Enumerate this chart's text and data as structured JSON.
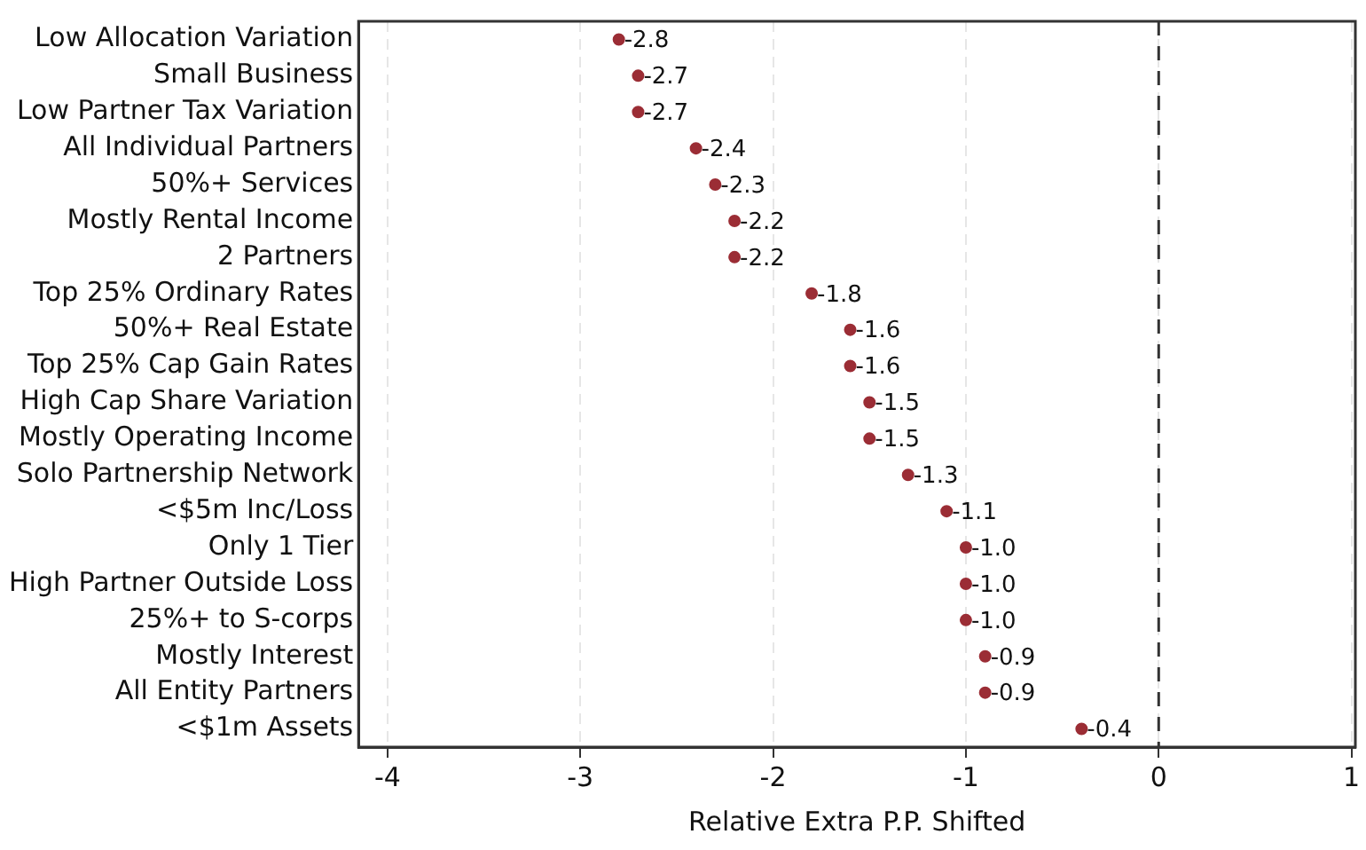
{
  "chart_data": {
    "type": "scatter",
    "orientation": "horizontal",
    "xlabel": "Relative Extra P.P. Shifted",
    "categories": [
      "Low Allocation Variation",
      "Small Business",
      "Low Partner Tax Variation",
      "All Individual Partners",
      "50%+ Services",
      "Mostly Rental Income",
      "2 Partners",
      "Top 25% Ordinary Rates",
      "50%+ Real Estate",
      "Top 25% Cap Gain Rates",
      "High Cap Share Variation",
      "Mostly Operating Income",
      "Solo Partnership Network",
      "<$5m Inc/Loss",
      "Only 1 Tier",
      "High Partner Outside Loss",
      "25%+ to S-corps",
      "Mostly Interest",
      "All Entity Partners",
      "<$1m Assets"
    ],
    "values": [
      -2.8,
      -2.7,
      -2.7,
      -2.4,
      -2.3,
      -2.2,
      -2.2,
      -1.8,
      -1.6,
      -1.6,
      -1.5,
      -1.5,
      -1.3,
      -1.1,
      -1.0,
      -1.0,
      -1.0,
      -0.9,
      -0.9,
      -0.4
    ],
    "value_labels": [
      "-2.8",
      "-2.7",
      "-2.7",
      "-2.4",
      "-2.3",
      "-2.2",
      "-2.2",
      "-1.8",
      "-1.6",
      "-1.6",
      "-1.5",
      "-1.5",
      "-1.3",
      "-1.1",
      "-1.0",
      "-1.0",
      "-1.0",
      "-0.9",
      "-0.9",
      "-0.4"
    ],
    "color": "#9b2d35",
    "marker": "circle",
    "xlim": [
      -4.15,
      1.02
    ],
    "xticks": [
      -4,
      -3,
      -2,
      -1,
      0,
      1
    ],
    "grid": "x",
    "ref_lines": [
      {
        "axis": "x",
        "value": 0,
        "color": "#333333",
        "line_style": "dashed"
      }
    ]
  }
}
